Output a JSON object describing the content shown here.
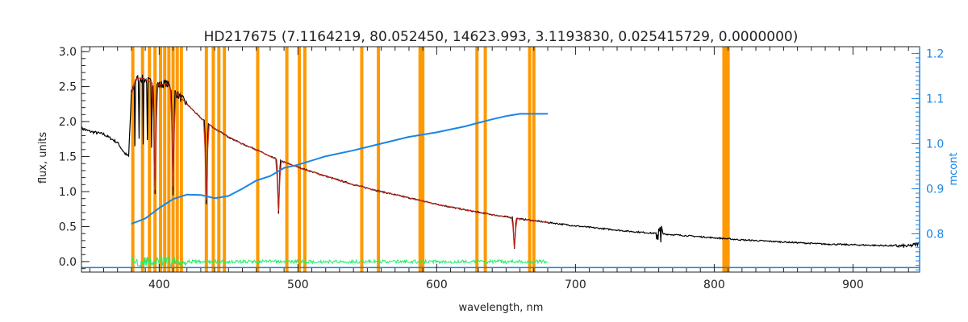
{
  "chart_data": {
    "type": "line",
    "title": "HD217675    (7.1164219, 80.052450, 14623.993, 3.1193830, 0.025415729, 0.0000000)",
    "xlabel": "wavelength, nm",
    "ylabel": "flux, units",
    "y2label": "mcont",
    "xlim": [
      344,
      948
    ],
    "ylim": [
      -0.15,
      3.07
    ],
    "y2lim": [
      0.715,
      1.215
    ],
    "x_ticks": [
      400,
      500,
      600,
      700,
      800,
      900
    ],
    "y_ticks": [
      0.0,
      0.5,
      1.0,
      1.5,
      2.0,
      2.5,
      3.0
    ],
    "y_tick_labels": [
      "0.0",
      "0.5",
      "1.0",
      "1.5",
      "2.0",
      "2.5",
      "3.0"
    ],
    "y2_ticks": [
      0.8,
      0.9,
      1.0,
      1.1,
      1.2
    ],
    "y2_tick_labels": [
      "0.8",
      "0.9",
      "1.0",
      "1.1",
      "1.2"
    ],
    "colors": {
      "observed": "#000000",
      "model": "#d42a1a",
      "residual": "#22ee66",
      "continuum": "#1a85e6",
      "masks": "#ff9900",
      "axes": "#222222"
    },
    "masked_wavelengths": [
      381,
      388,
      393,
      397,
      401,
      404,
      407,
      410,
      413,
      416,
      434,
      439,
      443,
      447,
      471,
      492,
      501,
      505,
      546,
      558,
      588,
      589,
      590,
      629,
      635,
      667,
      670,
      807,
      808,
      809,
      810
    ],
    "continuum": {
      "x": [
        380,
        390,
        400,
        410,
        420,
        430,
        440,
        450,
        460,
        470,
        480,
        490,
        500,
        520,
        540,
        560,
        580,
        600,
        620,
        630,
        640,
        650,
        660,
        670,
        680
      ],
      "y": [
        0.822,
        0.834,
        0.857,
        0.877,
        0.887,
        0.886,
        0.879,
        0.884,
        0.9,
        0.918,
        0.928,
        0.946,
        0.953,
        0.972,
        0.985,
        1.0,
        1.015,
        1.025,
        1.038,
        1.046,
        1.054,
        1.061,
        1.066,
        1.066,
        1.066
      ],
      "flat_level": 0.725,
      "flat_range": [
        344,
        948
      ]
    },
    "observed_spectrum": {
      "x": [
        344,
        350,
        360,
        370,
        375,
        378,
        380,
        383,
        386,
        390,
        395,
        400,
        405,
        410,
        415,
        420,
        425,
        430,
        440,
        450,
        460,
        470,
        480,
        490,
        500,
        520,
        540,
        560,
        580,
        600,
        620,
        640,
        660,
        680,
        700,
        720,
        740,
        760,
        780,
        800,
        820,
        840,
        860,
        880,
        900,
        920,
        940,
        948
      ],
      "y": [
        1.9,
        1.86,
        1.82,
        1.7,
        1.55,
        1.5,
        2.4,
        2.6,
        2.62,
        2.6,
        2.55,
        2.52,
        2.55,
        2.45,
        2.35,
        2.25,
        2.15,
        2.05,
        1.9,
        1.78,
        1.68,
        1.6,
        1.5,
        1.42,
        1.35,
        1.22,
        1.1,
        1.0,
        0.91,
        0.82,
        0.74,
        0.67,
        0.61,
        0.56,
        0.51,
        0.47,
        0.43,
        0.4,
        0.37,
        0.34,
        0.31,
        0.29,
        0.27,
        0.25,
        0.24,
        0.23,
        0.22,
        0.26
      ]
    },
    "absorption_lines": [
      {
        "x": 397,
        "y": 0.95
      },
      {
        "x": 410,
        "y": 1.0
      },
      {
        "x": 434,
        "y": 0.82
      },
      {
        "x": 486,
        "y": 0.68
      },
      {
        "x": 656,
        "y": 0.18
      }
    ],
    "model_range": [
      380,
      680
    ],
    "residual_range": [
      380,
      680
    ]
  }
}
